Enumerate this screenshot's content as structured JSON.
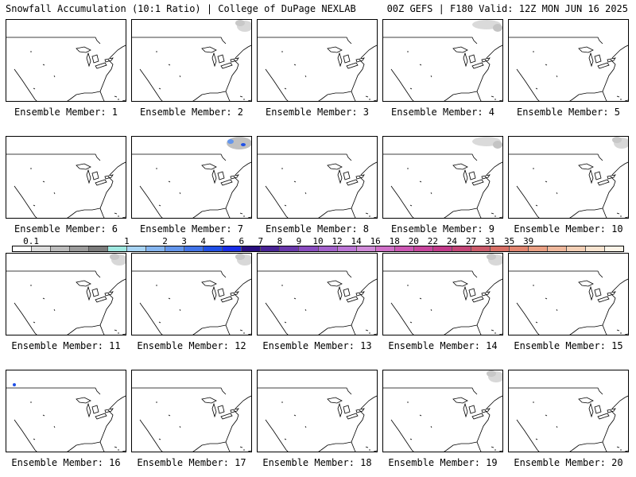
{
  "header": {
    "left_title": "Snowfall Accumulation (10:1 Ratio) | College of DuPage NEXLAB",
    "right_title": "00Z GEFS | F180 Valid: 12Z MON JUN 16 2025"
  },
  "members": [
    {
      "label": "Ensemble Member: 1",
      "snow": "none"
    },
    {
      "label": "Ensemble Member: 2",
      "snow": "light-northeast"
    },
    {
      "label": "Ensemble Member: 3",
      "snow": "none"
    },
    {
      "label": "Ensemble Member: 4",
      "snow": "light-north"
    },
    {
      "label": "Ensemble Member: 5",
      "snow": "none"
    },
    {
      "label": "Ensemble Member: 6",
      "snow": "none"
    },
    {
      "label": "Ensemble Member: 7",
      "snow": "moderate-northeast"
    },
    {
      "label": "Ensemble Member: 8",
      "snow": "none"
    },
    {
      "label": "Ensemble Member: 9",
      "snow": "light-north"
    },
    {
      "label": "Ensemble Member: 10",
      "snow": "light-northeast"
    },
    {
      "label": "Ensemble Member: 11",
      "snow": "light-northeast"
    },
    {
      "label": "Ensemble Member: 12",
      "snow": "light-northeast"
    },
    {
      "label": "Ensemble Member: 13",
      "snow": "none"
    },
    {
      "label": "Ensemble Member: 14",
      "snow": "light-northeast"
    },
    {
      "label": "Ensemble Member: 15",
      "snow": "none"
    },
    {
      "label": "Ensemble Member: 16",
      "snow": "trace-northwest"
    },
    {
      "label": "Ensemble Member: 17",
      "snow": "none"
    },
    {
      "label": "Ensemble Member: 18",
      "snow": "none"
    },
    {
      "label": "Ensemble Member: 19",
      "snow": "light-northeast"
    },
    {
      "label": "Ensemble Member: 20",
      "snow": "none"
    }
  ],
  "legend": {
    "ticks": [
      "0.1",
      "1",
      "2",
      "3",
      "4",
      "5",
      "6",
      "7",
      "8",
      "9",
      "10",
      "12",
      "14",
      "16",
      "18",
      "20",
      "22",
      "24",
      "27",
      "31",
      "35",
      "39"
    ],
    "colors": [
      "#ffffff",
      "#dcdcdc",
      "#bcbcbc",
      "#9c9c9c",
      "#7c7c7c",
      "#9fe8e0",
      "#a8d4f4",
      "#86b6f0",
      "#6496ec",
      "#4274e8",
      "#2050e6",
      "#1a2ee8",
      "#2a0f80",
      "#4a2496",
      "#6a38ac",
      "#8a4cc0",
      "#a462cc",
      "#bc76d6",
      "#d08ad8",
      "#d070c8",
      "#cc58b4",
      "#c8469e",
      "#c23a8a",
      "#c44678",
      "#cc5c6c",
      "#d87066",
      "#e28670",
      "#eaa084",
      "#efb89c",
      "#f4d0b6",
      "#f8e4d0",
      "#fcf4e8"
    ]
  }
}
